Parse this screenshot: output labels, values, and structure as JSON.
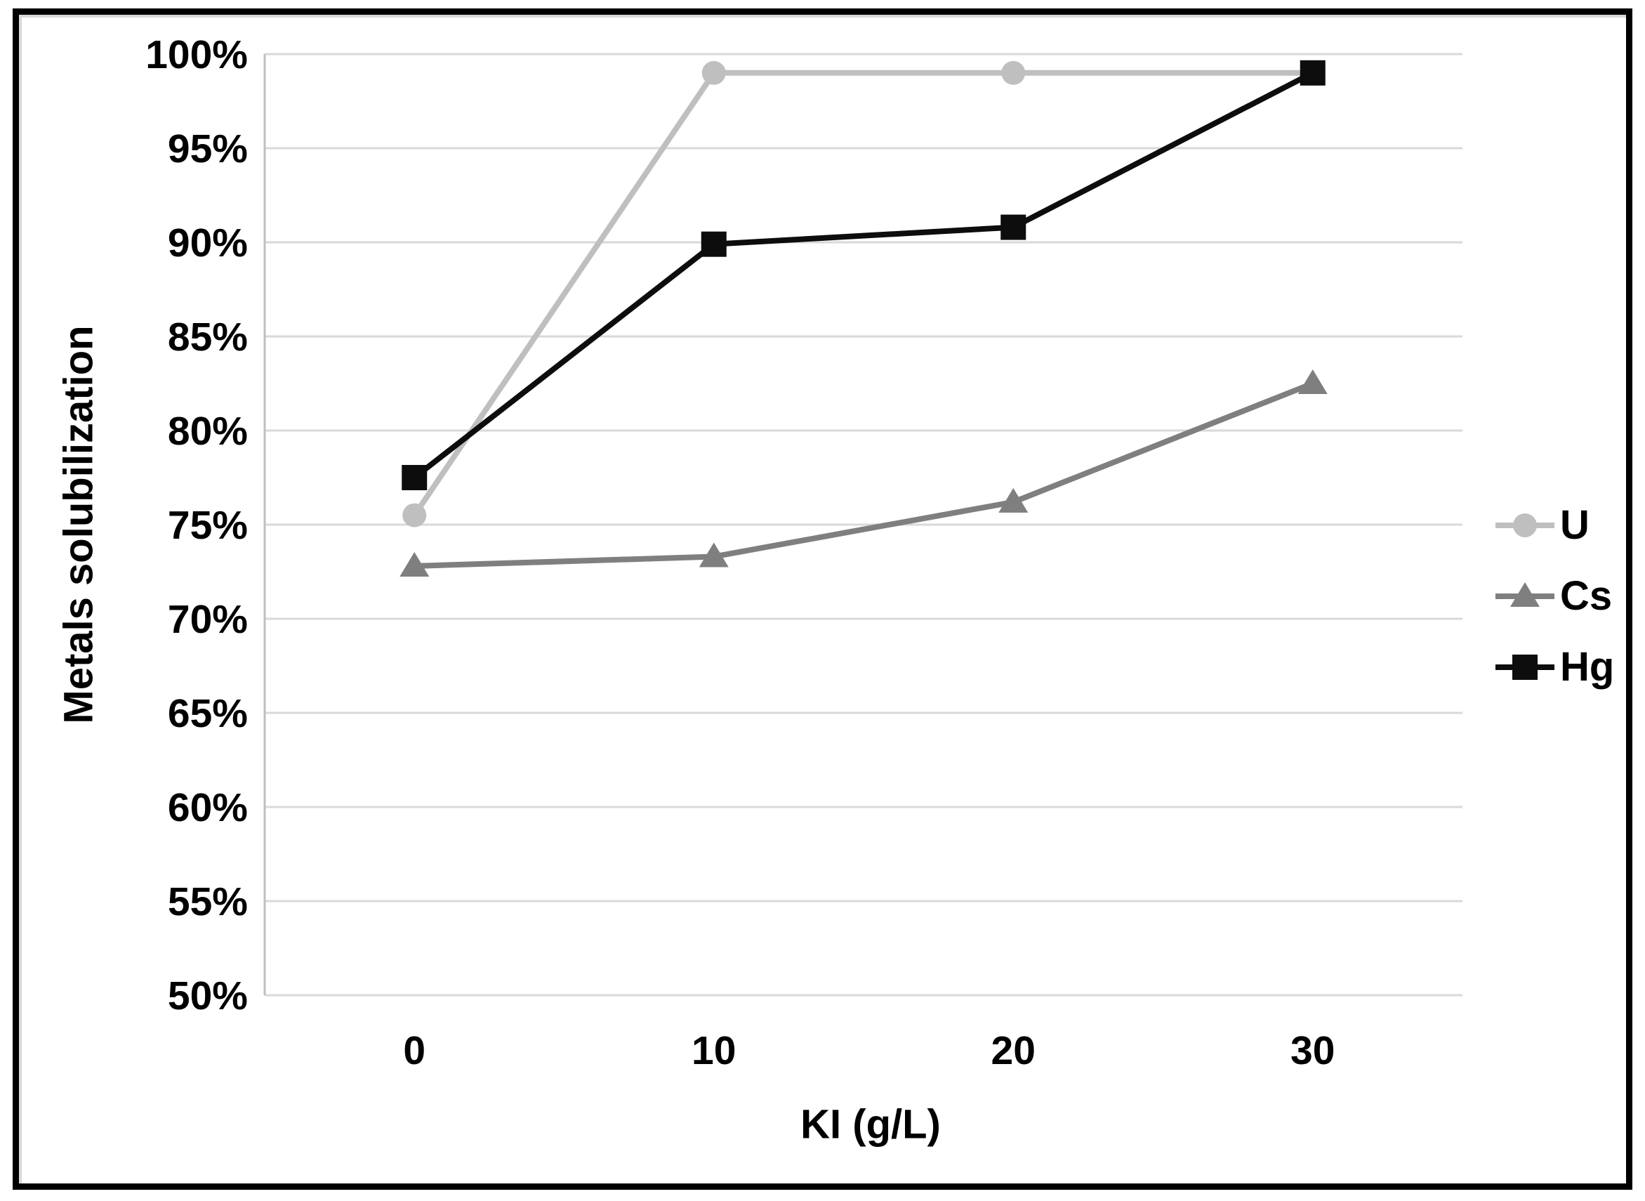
{
  "chart_data": {
    "type": "line",
    "title": "",
    "xlabel": "KI (g/L)",
    "ylabel": "Metals solubilization",
    "categories": [
      0,
      10,
      20,
      30
    ],
    "x_tick_labels": [
      "0",
      "10",
      "20",
      "30"
    ],
    "y_ticks": [
      50,
      55,
      60,
      65,
      70,
      75,
      80,
      85,
      90,
      95,
      100
    ],
    "y_tick_labels": [
      "50%",
      "55%",
      "60%",
      "65%",
      "70%",
      "75%",
      "80%",
      "85%",
      "90%",
      "95%",
      "100%"
    ],
    "ylim": [
      50,
      100
    ],
    "grid": "horizontal",
    "legend_position": "right",
    "series": [
      {
        "name": "U",
        "marker": "circle",
        "color": "#BFBFBF",
        "values": [
          75.5,
          99.0,
          99.0,
          99.0
        ]
      },
      {
        "name": "Cs",
        "marker": "triangle",
        "color": "#7F7F7F",
        "values": [
          72.8,
          73.3,
          76.2,
          82.5
        ]
      },
      {
        "name": "Hg",
        "marker": "square",
        "color": "#0D0D0D",
        "values": [
          77.5,
          89.9,
          90.8,
          99.0
        ]
      }
    ],
    "colors": {
      "gridline": "#D9D9D9",
      "axis_line": "#BFBFBF",
      "text": "#000000",
      "background": "#FFFFFF",
      "frame_border": "#000000"
    }
  }
}
